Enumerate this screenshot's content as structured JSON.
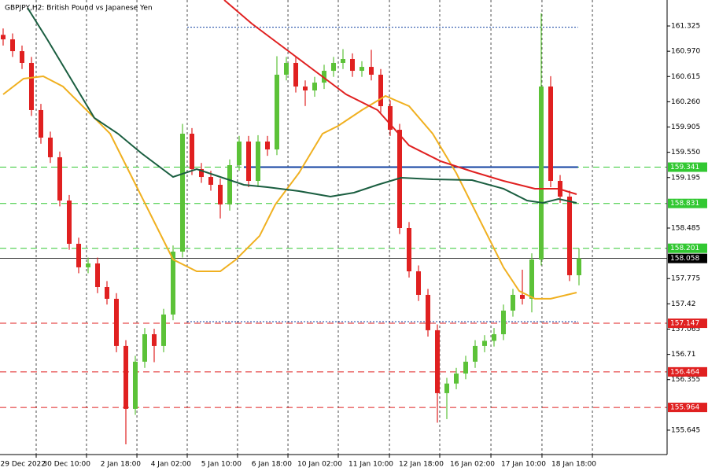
{
  "chart_data": {
    "type": "candlestick",
    "title": "GBPJPY,H2:  British Pound vs Japanese Yen",
    "xlim": [
      -0.333,
      70.333
    ],
    "ylim": [
      155.302,
      161.69
    ],
    "yticks": [
      161.325,
      {
        "value": 160.97,
        "label": "160.970"
      },
      160.615,
      {
        "value": 160.26,
        "label": "160.260"
      },
      159.905,
      {
        "value": 159.55,
        "label": "159.550"
      },
      159.195,
      158.485,
      157.775,
      157.42,
      157.065,
      156.71,
      156.355,
      155.645
    ],
    "xticks": [
      {
        "value": 3.5,
        "label": "29 Dec 2022"
      },
      {
        "value": 8.83,
        "label": "30 Dec 10:00"
      },
      {
        "value": 14.17,
        "label": "2 Jan 18:00"
      },
      {
        "value": 19.5,
        "label": "4 Jan 02:00"
      },
      {
        "value": 24.83,
        "label": "5 Jan 10:00"
      },
      {
        "value": 30.17,
        "label": "6 Jan 18:00"
      },
      {
        "value": 35.5,
        "label": "10 Jan 02:00"
      },
      {
        "value": 40.92,
        "label": "11 Jan 10:00"
      },
      {
        "value": 46.25,
        "label": "12 Jan 18:00"
      },
      {
        "value": 51.67,
        "label": "16 Jan 02:00"
      },
      {
        "value": 57.08,
        "label": "17 Jan 10:00"
      },
      {
        "value": 62.42,
        "label": "18 Jan 18:00"
      }
    ],
    "grid": true,
    "up_color": "#5cc238",
    "down_color": "#e02020",
    "open": [
      161.2,
      161.137,
      160.971,
      160.806,
      160.143,
      159.756,
      159.48,
      158.872,
      158.264,
      157.933,
      157.988,
      157.656,
      157.491,
      156.828,
      155.944,
      156.607,
      156.993,
      156.828,
      157.27,
      158.154,
      159.811,
      159.314,
      159.203,
      159.093,
      158.817,
      159.369,
      159.701,
      159.148,
      159.701,
      159.59,
      160.64,
      160.806,
      160.474,
      160.419,
      160.529,
      160.695,
      160.806,
      160.861,
      160.695,
      160.75,
      160.64,
      160.198,
      159.866,
      158.485,
      157.877,
      157.546,
      157.049,
      156.165,
      156.3,
      156.441,
      156.607,
      156.828,
      156.9,
      156.993,
      157.325,
      157.546,
      157.491,
      158.043,
      160.474,
      159.148,
      158.927,
      157.822
    ],
    "high": [
      161.29,
      161.22,
      161.05,
      160.89,
      160.23,
      159.84,
      159.56,
      158.95,
      158.35,
      158.07,
      158.07,
      157.74,
      157.57,
      156.91,
      156.69,
      157.08,
      157.07,
      157.35,
      158.24,
      159.95,
      159.89,
      159.4,
      159.29,
      159.18,
      159.45,
      159.78,
      159.78,
      159.79,
      159.78,
      160.9,
      160.89,
      160.89,
      160.56,
      160.61,
      160.78,
      160.89,
      161.0,
      160.94,
      160.83,
      160.99,
      160.72,
      160.28,
      159.95,
      158.57,
      157.96,
      157.63,
      157.13,
      156.38,
      156.52,
      156.69,
      156.91,
      156.98,
      157.08,
      157.41,
      157.63,
      157.9,
      158.13,
      161.502,
      160.62,
      159.23,
      159.01,
      158.2
    ],
    "low": [
      161.05,
      160.89,
      160.72,
      160.06,
      159.67,
      159.4,
      158.79,
      158.18,
      157.85,
      157.85,
      157.57,
      157.41,
      156.74,
      155.446,
      155.86,
      156.52,
      156.6,
      156.74,
      157.19,
      158.07,
      159.23,
      159.12,
      159.01,
      158.62,
      158.73,
      159.29,
      159.06,
      159.06,
      159.5,
      159.51,
      160.56,
      160.39,
      160.2,
      160.33,
      160.44,
      160.61,
      160.72,
      160.61,
      160.61,
      160.56,
      160.11,
      159.78,
      158.4,
      157.79,
      157.46,
      156.96,
      155.75,
      155.8,
      156.22,
      156.36,
      156.52,
      156.74,
      156.82,
      156.91,
      157.24,
      157.41,
      157.3,
      157.96,
      159.06,
      158.84,
      157.74,
      157.68
    ],
    "close": [
      161.137,
      160.971,
      160.806,
      160.143,
      159.756,
      159.48,
      158.872,
      158.264,
      157.933,
      157.988,
      157.656,
      157.491,
      156.828,
      155.944,
      156.607,
      156.993,
      156.828,
      157.27,
      158.154,
      159.811,
      159.314,
      159.203,
      159.093,
      158.817,
      159.369,
      159.701,
      159.148,
      159.701,
      159.59,
      160.64,
      160.806,
      160.474,
      160.419,
      160.529,
      160.695,
      160.806,
      160.861,
      160.695,
      160.75,
      160.64,
      160.198,
      159.866,
      158.485,
      157.877,
      157.546,
      157.049,
      156.165,
      156.3,
      156.441,
      156.607,
      156.828,
      156.9,
      156.993,
      157.325,
      157.546,
      157.491,
      158.043,
      160.474,
      159.148,
      158.927,
      157.822,
      158.058
    ],
    "lines": [
      {
        "color": "#f0b020",
        "x": [
          0,
          2.17,
          4.25,
          6.33,
          8.83,
          11.33,
          13.83,
          16.33,
          18,
          20.5,
          23,
          24.67,
          27.17,
          28.83,
          31.33,
          33.83,
          35.5,
          38,
          40.5,
          43,
          45.5,
          48,
          50.5,
          53,
          54.67,
          56.33,
          58,
          60.75
        ],
        "values": [
          160.364,
          160.585,
          160.618,
          160.474,
          160.143,
          159.811,
          159.148,
          158.485,
          158.043,
          157.877,
          157.877,
          158.043,
          158.375,
          158.817,
          159.259,
          159.811,
          159.922,
          160.143,
          160.342,
          160.198,
          159.811,
          159.259,
          158.596,
          157.933,
          157.601,
          157.491,
          157.491,
          157.579
        ]
      },
      {
        "color": "#1a5e40",
        "x": [
          2.58,
          4.67,
          7.17,
          9.67,
          12.17,
          14.67,
          18,
          20.5,
          23,
          25.5,
          28,
          31.33,
          34.67,
          37.17,
          39.67,
          42.17,
          45.5,
          49.67,
          53,
          55.5,
          57.17,
          58.83,
          60.75
        ],
        "values": [
          161.579,
          161.137,
          160.585,
          160.032,
          159.811,
          159.535,
          159.203,
          159.314,
          159.203,
          159.093,
          159.06,
          159.004,
          158.927,
          158.982,
          159.093,
          159.192,
          159.17,
          159.159,
          159.037,
          158.872,
          158.839,
          158.894,
          158.839
        ]
      },
      {
        "color": "#e02020",
        "x": [
          23.42,
          26.33,
          29.67,
          33,
          36.33,
          39.67,
          43,
          46.33,
          49.67,
          53,
          56.33,
          58.83,
          60.75
        ],
        "values": [
          161.69,
          161.358,
          161.027,
          160.695,
          160.364,
          160.143,
          159.646,
          159.425,
          159.281,
          159.148,
          159.037,
          159.037,
          158.96
        ]
      }
    ],
    "levels": [
      {
        "value": 159.341,
        "color": "#32c832"
      },
      {
        "value": 158.831,
        "color": "#32c832"
      },
      {
        "value": 158.201,
        "color": "#32c832"
      },
      {
        "value": 157.147,
        "color": "#e02020"
      },
      {
        "value": 156.464,
        "color": "#e02020"
      },
      {
        "value": 155.964,
        "color": "#e02020"
      }
    ],
    "segments": [
      {
        "value": 159.341,
        "x": [
          25.5,
          60.9
        ],
        "color": "#1040a0",
        "style": "solid"
      },
      {
        "value": 161.307,
        "x": [
          19.5,
          60.9
        ],
        "color": "#1040a0",
        "style": "dotted"
      },
      {
        "value": 157.17,
        "x": [
          19.5,
          60.9
        ],
        "color": "#1040a0",
        "style": "dotted"
      }
    ],
    "price_line": {
      "value": 158.058,
      "color": "#000000"
    }
  }
}
